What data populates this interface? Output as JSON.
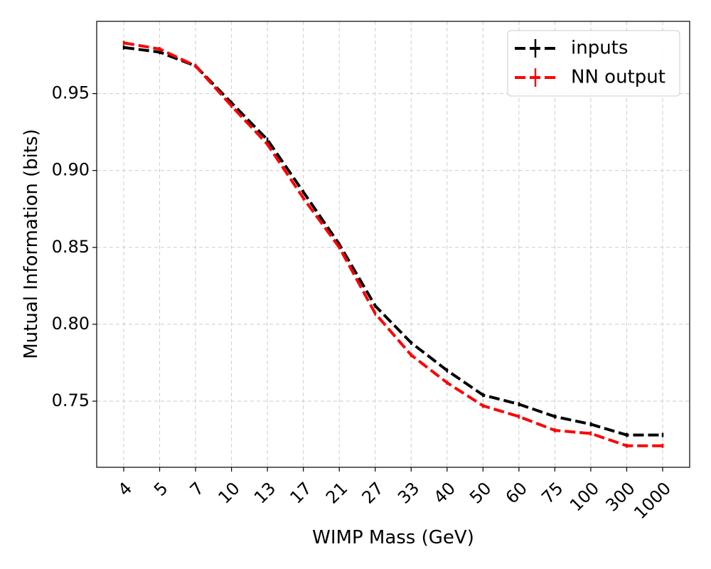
{
  "chart_data": {
    "type": "line",
    "title": "",
    "xlabel": "WIMP Mass (GeV)",
    "ylabel": "Mutual Information (bits)",
    "categories": [
      "4",
      "5",
      "7",
      "10",
      "13",
      "17",
      "21",
      "27",
      "33",
      "40",
      "50",
      "60",
      "75",
      "100",
      "300",
      "1000"
    ],
    "ylim": [
      0.707,
      0.997
    ],
    "yticks": [
      "0.75",
      "0.80",
      "0.85",
      "0.90",
      "0.95"
    ],
    "ytick_values": [
      0.75,
      0.8,
      0.85,
      0.9,
      0.95
    ],
    "grid": true,
    "legend_position": "top-right",
    "series": [
      {
        "name": "inputs",
        "color": "#000000",
        "values": [
          0.98,
          0.977,
          0.968,
          0.944,
          0.92,
          0.886,
          0.852,
          0.812,
          0.788,
          0.77,
          0.754,
          0.748,
          0.74,
          0.735,
          0.728,
          0.728
        ]
      },
      {
        "name": "NN output",
        "color": "#ff0000",
        "values": [
          0.983,
          0.979,
          0.968,
          0.942,
          0.917,
          0.882,
          0.85,
          0.807,
          0.78,
          0.762,
          0.747,
          0.74,
          0.731,
          0.729,
          0.721,
          0.721
        ]
      }
    ]
  }
}
